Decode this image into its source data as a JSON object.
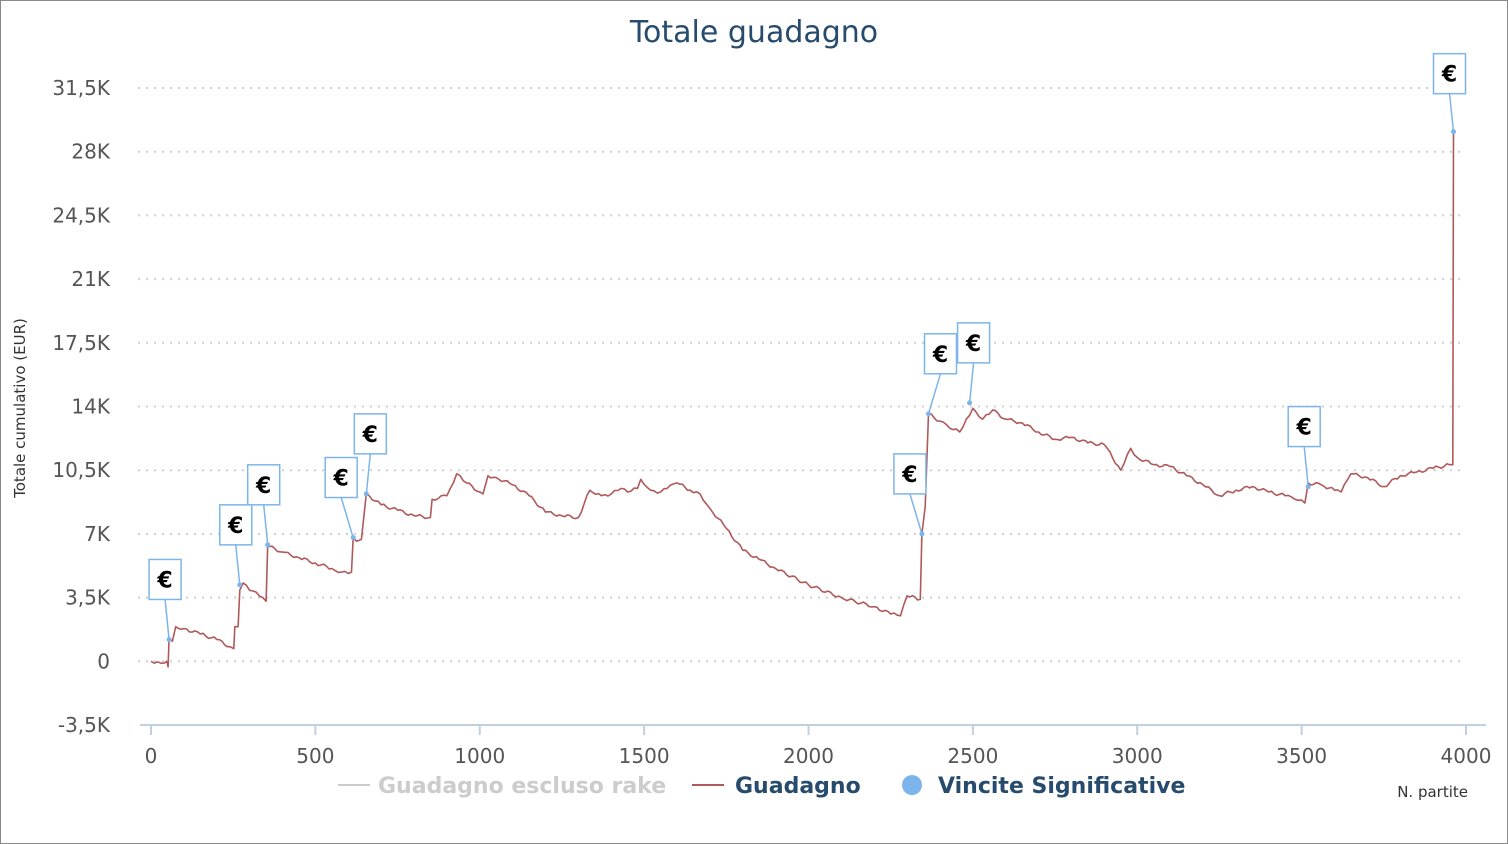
{
  "chart_data": {
    "type": "line",
    "title": "Totale guadagno",
    "xlabel": "N. partite",
    "ylabel": "Totale cumulativo (EUR)",
    "xlim": [
      0,
      4000
    ],
    "ylim": [
      -3500,
      31500
    ],
    "x_ticks": [
      "0",
      "500",
      "1000",
      "1500",
      "2000",
      "2500",
      "3000",
      "3500",
      "4000"
    ],
    "y_ticks": [
      "-3,5K",
      "0",
      "3,5K",
      "7K",
      "10,5K",
      "14K",
      "17,5K",
      "21K",
      "24,5K",
      "28K",
      "31,5K"
    ],
    "grid": "horizontal dotted",
    "legend_position": "bottom",
    "series": [
      {
        "name": "Guadagno escluso rake",
        "color": "#cccccc",
        "hidden": true,
        "points": []
      },
      {
        "name": "Guadagno",
        "color": "#b0595a",
        "points": [
          [
            0,
            0
          ],
          [
            20,
            -30
          ],
          [
            40,
            -100
          ],
          [
            48,
            0
          ],
          [
            52,
            -300
          ],
          [
            55,
            1300
          ],
          [
            65,
            1100
          ],
          [
            75,
            1900
          ],
          [
            100,
            1800
          ],
          [
            150,
            1500
          ],
          [
            200,
            1200
          ],
          [
            240,
            800
          ],
          [
            252,
            700
          ],
          [
            255,
            1900
          ],
          [
            265,
            1900
          ],
          [
            270,
            3900
          ],
          [
            280,
            4300
          ],
          [
            300,
            3900
          ],
          [
            320,
            3800
          ],
          [
            340,
            3500
          ],
          [
            350,
            3300
          ],
          [
            355,
            6400
          ],
          [
            360,
            6300
          ],
          [
            400,
            6000
          ],
          [
            450,
            5700
          ],
          [
            500,
            5400
          ],
          [
            550,
            5100
          ],
          [
            580,
            4900
          ],
          [
            610,
            4900
          ],
          [
            615,
            6800
          ],
          [
            620,
            6700
          ],
          [
            625,
            6600
          ],
          [
            640,
            6700
          ],
          [
            655,
            9200
          ],
          [
            700,
            8600
          ],
          [
            750,
            8300
          ],
          [
            800,
            8000
          ],
          [
            850,
            7900
          ],
          [
            855,
            8900
          ],
          [
            900,
            9100
          ],
          [
            930,
            10300
          ],
          [
            960,
            9800
          ],
          [
            1000,
            9300
          ],
          [
            1010,
            9200
          ],
          [
            1025,
            10200
          ],
          [
            1050,
            10100
          ],
          [
            1100,
            9700
          ],
          [
            1150,
            9100
          ],
          [
            1200,
            8200
          ],
          [
            1250,
            8000
          ],
          [
            1300,
            7900
          ],
          [
            1335,
            9400
          ],
          [
            1370,
            9100
          ],
          [
            1400,
            9200
          ],
          [
            1430,
            9500
          ],
          [
            1450,
            9300
          ],
          [
            1480,
            9500
          ],
          [
            1490,
            10000
          ],
          [
            1520,
            9400
          ],
          [
            1550,
            9300
          ],
          [
            1570,
            9500
          ],
          [
            1600,
            9800
          ],
          [
            1640,
            9400
          ],
          [
            1670,
            9200
          ],
          [
            1700,
            8400
          ],
          [
            1750,
            7300
          ],
          [
            1800,
            6100
          ],
          [
            1850,
            5600
          ],
          [
            1900,
            5100
          ],
          [
            2000,
            4200
          ],
          [
            2100,
            3500
          ],
          [
            2200,
            3000
          ],
          [
            2250,
            2600
          ],
          [
            2280,
            2500
          ],
          [
            2300,
            3600
          ],
          [
            2340,
            3400
          ],
          [
            2345,
            7000
          ],
          [
            2355,
            8500
          ],
          [
            2365,
            13600
          ],
          [
            2400,
            13200
          ],
          [
            2430,
            12800
          ],
          [
            2460,
            12600
          ],
          [
            2480,
            13300
          ],
          [
            2500,
            13900
          ],
          [
            2530,
            13300
          ],
          [
            2560,
            13800
          ],
          [
            2600,
            13300
          ],
          [
            2650,
            13100
          ],
          [
            2700,
            12600
          ],
          [
            2750,
            12200
          ],
          [
            2800,
            12300
          ],
          [
            2850,
            12000
          ],
          [
            2900,
            11900
          ],
          [
            2950,
            10500
          ],
          [
            2980,
            11700
          ],
          [
            3000,
            11200
          ],
          [
            3050,
            10800
          ],
          [
            3100,
            10700
          ],
          [
            3150,
            10200
          ],
          [
            3200,
            9700
          ],
          [
            3250,
            9100
          ],
          [
            3300,
            9400
          ],
          [
            3350,
            9600
          ],
          [
            3400,
            9300
          ],
          [
            3450,
            9100
          ],
          [
            3480,
            8900
          ],
          [
            3510,
            8700
          ],
          [
            3520,
            9800
          ],
          [
            3560,
            9700
          ],
          [
            3600,
            9400
          ],
          [
            3620,
            9300
          ],
          [
            3650,
            10300
          ],
          [
            3700,
            10100
          ],
          [
            3750,
            9600
          ],
          [
            3800,
            10200
          ],
          [
            3850,
            10400
          ],
          [
            3900,
            10600
          ],
          [
            3950,
            10800
          ],
          [
            3960,
            10800
          ],
          [
            3962,
            29100
          ]
        ]
      },
      {
        "name": "Vincite Significative",
        "color": "#7cb5ec",
        "type": "scatter",
        "marker_label": "€",
        "points": [
          [
            55,
            1200
          ],
          [
            270,
            4200
          ],
          [
            355,
            6400
          ],
          [
            615,
            6800
          ],
          [
            655,
            9200
          ],
          [
            2345,
            7000
          ],
          [
            2365,
            13600
          ],
          [
            2490,
            14200
          ],
          [
            3520,
            9600
          ],
          [
            3962,
            29100
          ]
        ]
      }
    ]
  }
}
